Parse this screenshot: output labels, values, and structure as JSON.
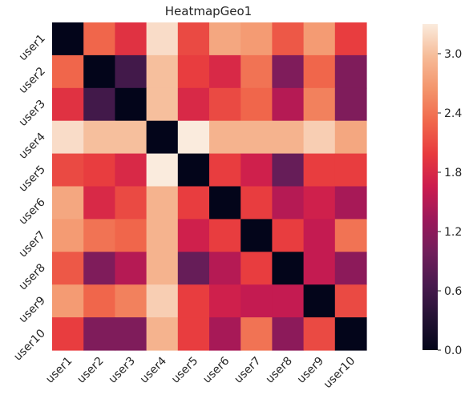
{
  "chart_data": {
    "type": "heatmap",
    "title": "HeatmapGeo1",
    "xlabel": "",
    "ylabel": "",
    "x_categories": [
      "user1",
      "user2",
      "user3",
      "user4",
      "user5",
      "user6",
      "user7",
      "user8",
      "user9",
      "user10"
    ],
    "y_categories": [
      "user1",
      "user2",
      "user3",
      "user4",
      "user5",
      "user6",
      "user7",
      "user8",
      "user9",
      "user10"
    ],
    "values": [
      [
        0.0,
        2.3,
        1.9,
        3.2,
        2.1,
        2.8,
        2.7,
        2.2,
        2.7,
        2.0
      ],
      [
        2.3,
        0.0,
        0.6,
        3.0,
        2.0,
        1.8,
        2.4,
        1.1,
        2.3,
        1.1
      ],
      [
        1.9,
        0.6,
        0.0,
        3.0,
        1.8,
        2.1,
        2.3,
        1.5,
        2.5,
        1.1
      ],
      [
        3.2,
        3.0,
        3.0,
        0.0,
        3.3,
        2.9,
        2.9,
        2.9,
        3.1,
        2.8
      ],
      [
        2.1,
        2.0,
        1.8,
        3.3,
        0.0,
        2.0,
        1.7,
        0.9,
        2.0,
        2.0
      ],
      [
        2.8,
        1.8,
        2.1,
        2.9,
        2.0,
        0.0,
        2.0,
        1.5,
        1.7,
        1.4
      ],
      [
        2.7,
        2.4,
        2.3,
        2.9,
        1.7,
        2.0,
        0.0,
        2.0,
        1.6,
        2.4
      ],
      [
        2.2,
        1.1,
        1.5,
        2.9,
        0.9,
        1.5,
        2.0,
        0.0,
        1.6,
        1.2
      ],
      [
        2.7,
        2.3,
        2.5,
        3.1,
        2.0,
        1.7,
        1.6,
        1.6,
        0.0,
        2.1
      ],
      [
        2.0,
        1.1,
        1.1,
        2.9,
        2.0,
        1.4,
        2.4,
        1.2,
        2.1,
        0.0
      ]
    ],
    "vmin": 0.0,
    "vmax": 3.3,
    "colormap": "rocket",
    "colorbar_ticks": [
      0.0,
      0.6,
      1.2,
      1.8,
      2.4,
      3.0
    ],
    "colorbar_tick_labels": [
      "0.0",
      "0.6",
      "1.2",
      "1.8",
      "2.4",
      "3.0"
    ],
    "legend": "colorbar-right",
    "grid": false
  }
}
